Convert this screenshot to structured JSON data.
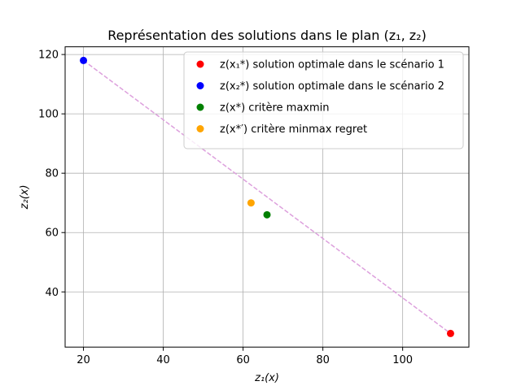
{
  "chart_data": {
    "type": "scatter",
    "title": "Représentation des solutions dans le plan (z₁, z₂)",
    "xlabel": "z₁(x)",
    "ylabel": "z₂(x)",
    "xlim": [
      15.4,
      116.6
    ],
    "ylim": [
      21.4,
      122.6
    ],
    "xticks": [
      20,
      40,
      60,
      80,
      100
    ],
    "yticks": [
      40,
      60,
      80,
      100,
      120
    ],
    "grid": true,
    "legend_position": "top-right",
    "series": [
      {
        "name": "z(x₁*) solution optimale dans le scénario 1",
        "color": "#ff0000",
        "points": [
          {
            "x": 112,
            "y": 26
          }
        ]
      },
      {
        "name": "z(x₂*) solution optimale dans le scénario 2",
        "color": "#0000ff",
        "points": [
          {
            "x": 20,
            "y": 118
          }
        ]
      },
      {
        "name": "z(x*) critère maxmin",
        "color": "#008000",
        "points": [
          {
            "x": 66,
            "y": 66
          }
        ]
      },
      {
        "name": "z(x*′) critère minmax regret",
        "color": "#ffa500",
        "points": [
          {
            "x": 62,
            "y": 70
          }
        ]
      }
    ],
    "line": {
      "style": "dashed",
      "color": "#dda0dd",
      "from": {
        "x": 20,
        "y": 118
      },
      "to": {
        "x": 112,
        "y": 26
      }
    }
  }
}
